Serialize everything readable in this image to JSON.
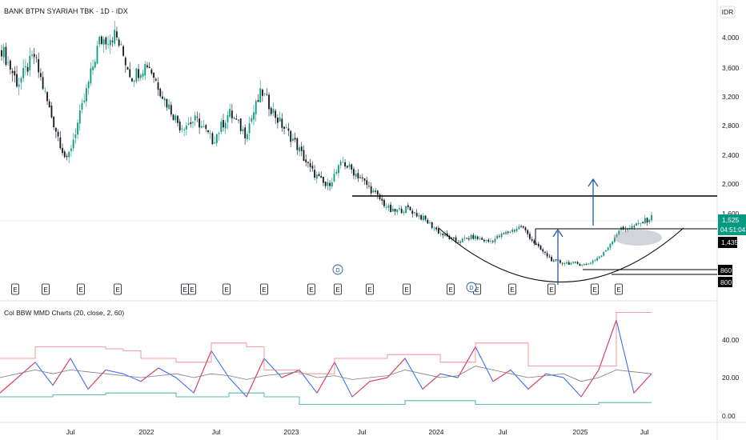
{
  "header": {
    "symbol_title": "BANK BTPN SYARIAH TBK · 1D · IDX",
    "currency": "IDR"
  },
  "price_axis": {
    "ticks": [
      "4,000",
      "3,600",
      "3,200",
      "2,800",
      "2,400",
      "2,000",
      "1,600"
    ],
    "last_price": "1,525",
    "countdown": "04:51:04",
    "level_1435": "1,435",
    "level_860": "860",
    "level_800": "800"
  },
  "indicator": {
    "title": "Col BBW MMD Charts (20, close, 2, 60)",
    "ticks": [
      "40.00",
      "20.00",
      "0.00"
    ]
  },
  "time_axis": {
    "labels": [
      "Jul",
      "2022",
      "Jul",
      "2023",
      "Jul",
      "2024",
      "Jul",
      "2025",
      "Jul"
    ]
  },
  "events": {
    "earnings_label": "E",
    "dividend_label": "D"
  },
  "colors": {
    "candle_up": "#089981",
    "candle_down": "#131722",
    "price_badge": "#089981",
    "drawing_lines": "#000000",
    "arrow": "#2157a8",
    "bbw_red": "#f23645",
    "bbw_blue": "#2962ff",
    "bbw_gray": "#787b86",
    "bbw_green": "#26a69a",
    "upper_band": "#f77c80"
  },
  "chart_data": [
    {
      "type": "candlestick",
      "title": "BANK BTPN SYARIAH TBK · 1D · IDX",
      "ylabel": "IDR",
      "ylim": [
        600,
        4300
      ],
      "x_labels": [
        "Jul",
        "2022",
        "Jul",
        "2023",
        "Jul",
        "2024",
        "Jul",
        "2025",
        "Jul"
      ],
      "y_ticks": [
        1600,
        2000,
        2400,
        2800,
        3200,
        3600,
        4000
      ],
      "price_path_close": [
        3900,
        3400,
        3800,
        3000,
        2300,
        3100,
        4000,
        4100,
        3500,
        3700,
        3200,
        2800,
        2900,
        2600,
        3000,
        2700,
        3300,
        2900,
        2600,
        2200,
        1950,
        2300,
        2100,
        1850,
        1600,
        1650,
        1500,
        1300,
        1180,
        1250,
        1180,
        1300,
        1400,
        1100,
        900,
        880,
        860,
        1000,
        1350,
        1400,
        1525
      ],
      "annotations": {
        "last_price": 1525,
        "horizontal_levels": [
          1880,
          1435,
          860,
          800
        ],
        "target_arrows": 2,
        "rounding_bottom": "cup-and-handle arc",
        "event_markers": [
          "E",
          "D"
        ]
      }
    },
    {
      "type": "line",
      "title": "Col BBW MMD Charts (20, close, 2, 60)",
      "ylim": [
        0,
        56
      ],
      "y_ticks": [
        0,
        20,
        40
      ],
      "series": [
        {
          "values": [
            12,
            20,
            28,
            16,
            30,
            14,
            24,
            22,
            18,
            25,
            20,
            12,
            34,
            20,
            10,
            30,
            20,
            24,
            12,
            28,
            10,
            18,
            20,
            30,
            14,
            22,
            20,
            36,
            18,
            24,
            14,
            22,
            20,
            10,
            24,
            50,
            12,
            22
          ]
        },
        {
          "values": [
            20,
            22,
            24,
            22,
            24,
            23,
            22,
            21,
            20,
            21,
            22,
            20,
            22,
            21,
            19,
            21,
            22,
            23,
            20,
            21,
            19,
            20,
            21,
            24,
            22,
            20,
            21,
            26,
            24,
            22,
            20,
            21,
            22,
            18,
            20,
            24,
            23,
            22
          ]
        },
        {
          "values": [
            30,
            30,
            36,
            36,
            36,
            36,
            35,
            34,
            30,
            30,
            28,
            28,
            38,
            38,
            36,
            24,
            24,
            22,
            22,
            30,
            30,
            30,
            32,
            32,
            32,
            28,
            28,
            38,
            38,
            38,
            26,
            26,
            26,
            26,
            26,
            54,
            54,
            54
          ]
        },
        {
          "values": [
            10,
            10,
            10,
            11,
            11,
            11,
            12,
            12,
            12,
            12,
            10,
            10,
            10,
            12,
            12,
            10,
            10,
            6,
            6,
            6,
            6,
            6,
            6,
            8,
            8,
            8,
            8,
            6,
            6,
            6,
            6,
            6,
            6,
            6,
            7,
            7,
            7,
            7
          ]
        }
      ]
    }
  ]
}
